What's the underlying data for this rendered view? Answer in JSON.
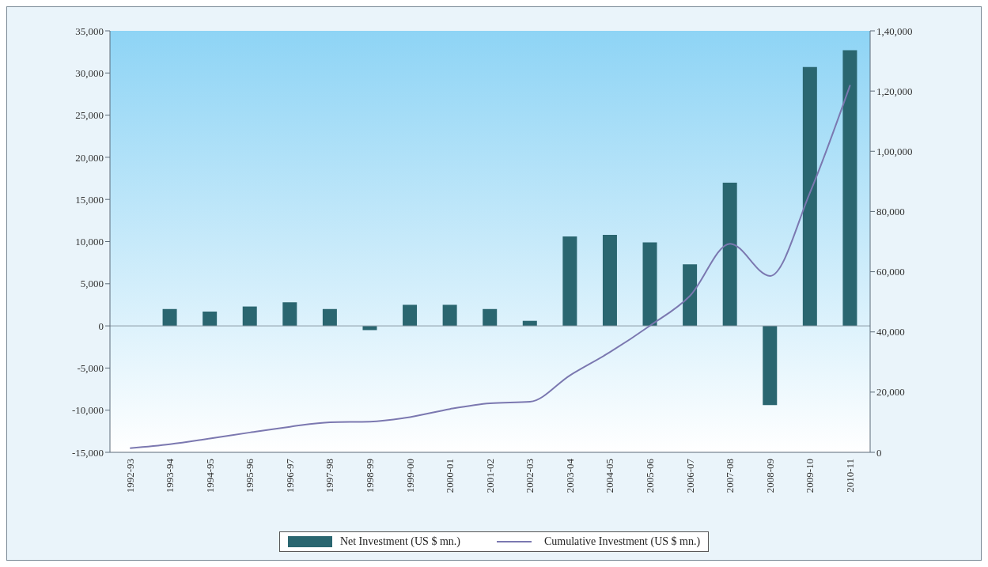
{
  "chart_data": {
    "type": "bar",
    "categories": [
      "1992-93",
      "1993-94",
      "1994-95",
      "1995-96",
      "1996-97",
      "1997-98",
      "1998-99",
      "1999-00",
      "2000-01",
      "2001-02",
      "2002-03",
      "2003-04",
      "2004-05",
      "2005-06",
      "2006-07",
      "2007-08",
      "2008-09",
      "2009-10",
      "2010-11"
    ],
    "series": [
      {
        "name": "Net Investment (US $ mn.)",
        "color": "#2a6670",
        "values": [
          null,
          2000,
          1700,
          2300,
          2800,
          2000,
          -500,
          2500,
          2500,
          2000,
          600,
          10600,
          10800,
          9900,
          7300,
          17000,
          -9400,
          30700,
          32700
        ]
      },
      {
        "name": "Cumulative Investment (US $ mn.)",
        "type": "line",
        "axis": "y2",
        "color": "#7b78b0",
        "values": [
          1400,
          2700,
          4600,
          6600,
          8500,
          10000,
          10200,
          11700,
          14400,
          16300,
          16800,
          25600,
          33300,
          42100,
          52000,
          69300,
          58600,
          86400,
          122000
        ]
      }
    ],
    "ylim": [
      -15000,
      35000
    ],
    "yticks": [
      {
        "value": -15000,
        "label": "-15,000"
      },
      {
        "value": -10000,
        "label": "-10,000"
      },
      {
        "value": -5000,
        "label": "-5,000"
      },
      0,
      {
        "value": 5000,
        "label": "5,000"
      },
      {
        "value": 10000,
        "label": "10,000"
      },
      {
        "value": 15000,
        "label": "15,000"
      },
      {
        "value": 20000,
        "label": "20,000"
      },
      {
        "value": 25000,
        "label": "25,000"
      },
      {
        "value": 30000,
        "label": "30,000"
      },
      {
        "value": 35000,
        "label": "35,000"
      }
    ],
    "y2lim": [
      0,
      140000
    ],
    "y2ticks": [
      0,
      {
        "value": 20000,
        "label": "20,000"
      },
      {
        "value": 40000,
        "label": "40,000"
      },
      {
        "value": 60000,
        "label": "60,000"
      },
      {
        "value": 80000,
        "label": "80,000"
      },
      {
        "value": 100000,
        "label": "1,00,000"
      },
      {
        "value": 120000,
        "label": "1,20,000"
      },
      {
        "value": 140000,
        "label": "1,40,000"
      }
    ],
    "ref_lines": [
      {
        "axis": "y",
        "value": 0,
        "color": "#8a9aa6"
      }
    ],
    "grid": false,
    "legend": "bottom",
    "marker": "none",
    "line_style": "solid"
  }
}
